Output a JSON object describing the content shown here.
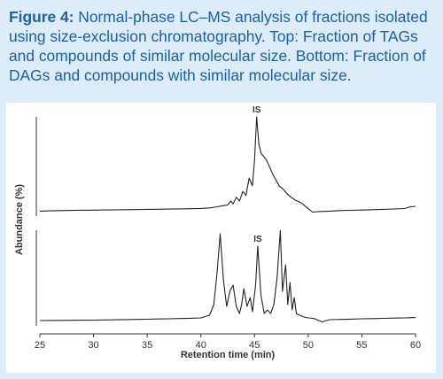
{
  "caption": {
    "label": "Figure 4:",
    "text": "Normal-phase LC–MS analysis of fractions isolated using size-exclusion chromatography. Top: Fraction of TAGs and compounds of similar molecular size. Bottom: Fraction of DAGs and compounds with similar molecular size."
  },
  "colors": {
    "caption_text": "#1f5fa3",
    "background": "#dcecf9",
    "panel": "#ffffff",
    "trace": "#222222"
  },
  "chart_data": [
    {
      "type": "line",
      "title": "",
      "xlabel": "Retention time (min)",
      "ylabel": "Abundance (%)",
      "xlim": [
        25,
        60
      ],
      "xticks": [
        25,
        30,
        35,
        40,
        45,
        50,
        55,
        60
      ],
      "y_scale": "relative (no tick labels)",
      "grid": false,
      "annotations": [
        {
          "text": "IS",
          "x": 45.3
        }
      ],
      "series": [
        {
          "x": [
            25,
            26,
            27,
            28,
            29,
            30,
            31,
            32,
            33,
            34,
            35,
            36,
            37,
            38,
            39,
            40,
            40.5,
            41,
            41.5,
            42,
            42.5,
            42.8,
            43,
            43.3,
            43.6,
            43.9,
            44.2,
            44.5,
            44.8,
            45.0,
            45.2,
            45.4,
            45.6,
            45.9,
            46.1,
            46.4,
            46.7,
            47.0,
            47.3,
            47.7,
            48.0,
            48.4,
            48.8,
            49.2,
            49.6,
            50.0,
            50.4,
            51,
            52,
            53,
            54,
            55,
            56,
            57,
            58,
            59,
            59.5,
            60
          ],
          "y": [
            1.5,
            1.8,
            2,
            2.2,
            2.4,
            2.5,
            2.7,
            2.8,
            3,
            3.1,
            3.3,
            3.4,
            3.6,
            3.8,
            4,
            4.3,
            4.5,
            5,
            6,
            7,
            8,
            12,
            9,
            16,
            12,
            22,
            18,
            36,
            28,
            55,
            100,
            72,
            62,
            58,
            55,
            48,
            40,
            34,
            28,
            24,
            20,
            16,
            13,
            11,
            8,
            4,
            0.5,
            1,
            1.5,
            2,
            2.3,
            2.6,
            3,
            3.3,
            3.7,
            4.2,
            6,
            6.5
          ]
        },
        {
          "x": [
            25,
            26,
            27,
            28,
            29,
            30,
            31,
            32,
            33,
            34,
            35,
            36,
            37,
            38,
            39,
            40,
            40.8,
            41.2,
            41.5,
            41.8,
            42.1,
            42.4,
            42.7,
            43.0,
            43.3,
            43.6,
            43.8,
            44.0,
            44.3,
            44.6,
            44.8,
            45.1,
            45.3,
            45.6,
            45.9,
            46.2,
            46.5,
            46.8,
            47.1,
            47.4,
            47.6,
            47.9,
            48.1,
            48.3,
            48.5,
            48.7,
            48.9,
            49.2,
            49.6,
            50,
            50.5,
            51,
            51.3,
            51.7,
            52,
            53,
            54,
            55,
            56,
            57,
            58,
            59,
            59.5,
            60
          ],
          "y": [
            2,
            2.1,
            2.2,
            2.3,
            2.4,
            2.5,
            2.7,
            2.9,
            3.1,
            3.3,
            3.5,
            3.8,
            4,
            4.3,
            4.6,
            5,
            8,
            20,
            55,
            100,
            48,
            18,
            35,
            42,
            18,
            10,
            20,
            38,
            18,
            28,
            12,
            42,
            86,
            30,
            10,
            14,
            10,
            20,
            50,
            104,
            35,
            65,
            20,
            45,
            14,
            28,
            10,
            8,
            6,
            5,
            4.5,
            2,
            0.5,
            2,
            3,
            3.3,
            3.6,
            4,
            4.2,
            4.5,
            4.8,
            5,
            5.2,
            5.4
          ]
        }
      ]
    }
  ]
}
